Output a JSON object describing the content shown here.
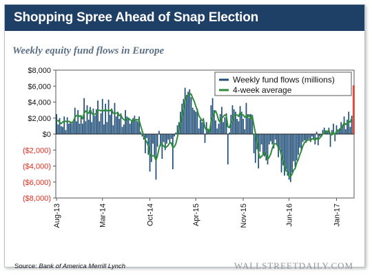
{
  "header": {
    "title": "Shopping Spree Ahead of Snap Election"
  },
  "footer": {
    "source_prefix": "Source: ",
    "source_name": "Bank of America Merrill Lynch",
    "brand": "WALLSTREETDAILY.COM"
  },
  "colors": {
    "title_bar": "#1e3f66",
    "bars": "#1f4e78",
    "average_line": "#2e8b3a",
    "highlight_bar": "#e04b3c",
    "negative_ticks": "#e02b1b",
    "subtitle": "#5b6f86"
  },
  "chart_data": {
    "type": "bar",
    "subtitle": "Weekly equity fund flows in Europe",
    "y_ticks": [
      {
        "value": 8000,
        "label": "$8,000"
      },
      {
        "value": 6000,
        "label": "$6,000"
      },
      {
        "value": 4000,
        "label": "$4,000"
      },
      {
        "value": 2000,
        "label": "$2,000"
      },
      {
        "value": 0,
        "label": "$0"
      },
      {
        "value": -2000,
        "label": "($2,000)"
      },
      {
        "value": -4000,
        "label": "($4,000)"
      },
      {
        "value": -6000,
        "label": "($6,000)"
      },
      {
        "value": -8000,
        "label": "($8,000)"
      }
    ],
    "ylim": [
      -8000,
      8000
    ],
    "x_ticks": [
      {
        "week_index": 0,
        "label": "Aug-13"
      },
      {
        "week_index": 30,
        "label": "Mar-14"
      },
      {
        "week_index": 61,
        "label": "Oct-14"
      },
      {
        "week_index": 91,
        "label": "Apr-15"
      },
      {
        "week_index": 122,
        "label": "Nov-15"
      },
      {
        "week_index": 152,
        "label": "Jun-16"
      },
      {
        "week_index": 183,
        "label": "Jan-17"
      }
    ],
    "grid": false,
    "legend_position": "top-right",
    "series": [
      {
        "name": "Weekly fund flows (millions)",
        "kind": "bar",
        "values": [
          2500,
          1200,
          2000,
          1000,
          900,
          2200,
          500,
          2100,
          1300,
          1500,
          1300,
          1700,
          3300,
          1600,
          3000,
          1300,
          2300,
          1300,
          4500,
          1600,
          3600,
          1800,
          3400,
          1500,
          3200,
          2300,
          3100,
          4200,
          1600,
          2600,
          4400,
          1200,
          3800,
          1500,
          4300,
          2400,
          3200,
          1100,
          3900,
          2200,
          2800,
          1900,
          2600,
          900,
          1200,
          3000,
          2200,
          1900,
          1300,
          1600,
          2000,
          2300,
          1700,
          1600,
          2200,
          300,
          -300,
          -700,
          -2400,
          -500,
          -2600,
          -4700,
          -3500,
          -1200,
          -2700,
          -5700,
          -1600,
          400,
          -1500,
          -3100,
          -1000,
          -2000,
          -1200,
          -700,
          -1200,
          -600,
          -4400,
          -300,
          200,
          1100,
          1500,
          2800,
          3800,
          4400,
          5800,
          4900,
          5300,
          5600,
          4600,
          3300,
          3000,
          2800,
          3200,
          700,
          1800,
          1500,
          2000,
          -1100,
          1500,
          700,
          600,
          3600,
          4500,
          3000,
          1700,
          700,
          1300,
          2500,
          3400,
          1500,
          2100,
          2600,
          -3800,
          200,
          2400,
          3600,
          3100,
          2800,
          1900,
          1600,
          3500,
          2800,
          1900,
          600,
          3900,
          2500,
          2000,
          2500,
          2400,
          -2400,
          -3600,
          -1900,
          -4300,
          -2200,
          -1300,
          -2700,
          -2800,
          -3300,
          -3800,
          -1300,
          -900,
          -1300,
          -1800,
          -700,
          -1300,
          -2900,
          -1800,
          -4800,
          -3900,
          -5200,
          -4400,
          -5200,
          -5700,
          -6000,
          -4800,
          -3400,
          -4100,
          -3300,
          -2600,
          -1700,
          -2000,
          -1000,
          -800,
          -1100,
          -700,
          -600,
          -1000,
          -300,
          -700,
          -1300,
          300,
          -1400,
          -300,
          -300,
          500,
          800,
          300,
          300,
          800,
          -1600,
          500,
          1300,
          -900,
          1100,
          400,
          700,
          1500,
          1200,
          2200,
          600,
          1800,
          2800,
          900,
          2300
        ],
        "note": "bar values are visual estimates of weekly flows in $ millions"
      },
      {
        "name": "4-week average",
        "kind": "line",
        "values": [
          1600,
          1700,
          1500,
          1300,
          1500,
          1600,
          1600,
          1500,
          1600,
          1500,
          1400,
          1600,
          2100,
          2300,
          2400,
          2200,
          2300,
          1900,
          2600,
          2900,
          2700,
          2600,
          3100,
          2600,
          2400,
          2500,
          2600,
          2900,
          3000,
          2900,
          3000,
          2900,
          3100,
          2900,
          3000,
          2900,
          3100,
          2600,
          2600,
          2600,
          2700,
          2300,
          2400,
          2000,
          1800,
          1700,
          1900,
          2000,
          1800,
          1700,
          1600,
          1800,
          1800,
          1800,
          1700,
          1000,
          400,
          -200,
          -700,
          -1000,
          -1500,
          -2500,
          -2800,
          -2700,
          -2800,
          -3300,
          -2700,
          -1800,
          -1200,
          -1300,
          -1500,
          -1700,
          -1600,
          -1400,
          -1100,
          -1100,
          -1700,
          -1600,
          -1200,
          -400,
          600,
          1400,
          2300,
          3100,
          4200,
          4700,
          4900,
          5100,
          5000,
          4500,
          4100,
          3500,
          3000,
          2300,
          2000,
          1700,
          1800,
          800,
          500,
          600,
          200,
          1600,
          2100,
          2600,
          2900,
          2400,
          1700,
          1500,
          2000,
          2200,
          2400,
          2300,
          900,
          800,
          1400,
          1600,
          2300,
          2400,
          2400,
          2200,
          2700,
          2400,
          2400,
          2100,
          2300,
          2100,
          2400,
          1900,
          2200,
          1100,
          100,
          -1000,
          -2300,
          -3000,
          -2800,
          -2600,
          -2300,
          -2600,
          -3200,
          -2900,
          -2500,
          -1800,
          -1300,
          -1200,
          -1300,
          -1700,
          -1900,
          -2700,
          -3300,
          -4100,
          -4600,
          -4700,
          -5300,
          -5300,
          -5000,
          -4500,
          -4300,
          -3600,
          -3200,
          -2600,
          -2100,
          -1500,
          -1100,
          -900,
          -800,
          -700,
          -800,
          -600,
          -600,
          -800,
          -500,
          -700,
          -500,
          -300,
          0,
          100,
          400,
          300,
          500,
          0,
          -100,
          200,
          -100,
          400,
          500,
          400,
          800,
          1000,
          1400,
          1200,
          1400,
          1600,
          1500,
          2000
        ]
      }
    ],
    "highlight": {
      "kind": "bar",
      "value": 6100,
      "note": "most recent week, shown as a red bar"
    }
  }
}
